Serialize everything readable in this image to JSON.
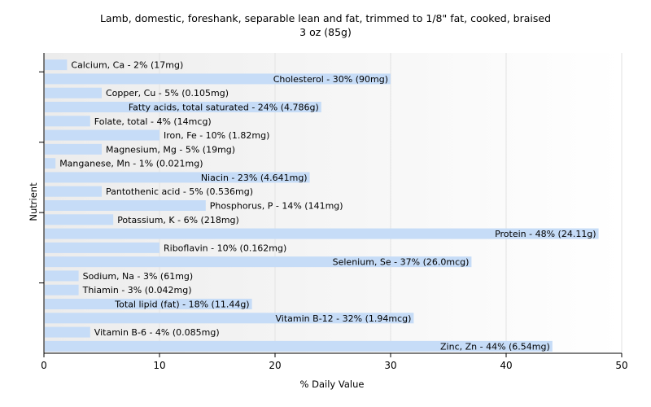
{
  "chart_data": {
    "type": "bar",
    "orientation": "horizontal",
    "title": "Lamb, domestic, foreshank, separable lean and fat, trimmed to 1/8\" fat, cooked, braised",
    "subtitle": "3 oz (85g)",
    "xlabel": "% Daily Value",
    "ylabel": "Nutrient",
    "xlim": [
      0,
      50
    ],
    "xticks": [
      0,
      10,
      20,
      30,
      40,
      50
    ],
    "grid": true,
    "bar_color": "#c6dcf7",
    "categories": [
      "Calcium, Ca",
      "Cholesterol",
      "Copper, Cu",
      "Fatty acids, total saturated",
      "Folate, total",
      "Iron, Fe",
      "Magnesium, Mg",
      "Manganese, Mn",
      "Niacin",
      "Pantothenic acid",
      "Phosphorus, P",
      "Potassium, K",
      "Protein",
      "Riboflavin",
      "Selenium, Se",
      "Sodium, Na",
      "Thiamin",
      "Total lipid (fat)",
      "Vitamin B-12",
      "Vitamin B-6",
      "Zinc, Zn"
    ],
    "values": [
      2,
      30,
      5,
      24,
      4,
      10,
      5,
      1,
      23,
      5,
      14,
      6,
      48,
      10,
      37,
      3,
      3,
      18,
      32,
      4,
      44
    ],
    "labels": [
      "Calcium, Ca - 2% (17mg)",
      "Cholesterol - 30% (90mg)",
      "Copper, Cu - 5% (0.105mg)",
      "Fatty acids, total saturated - 24% (4.786g)",
      "Folate, total - 4% (14mcg)",
      "Iron, Fe - 10% (1.82mg)",
      "Magnesium, Mg - 5% (19mg)",
      "Manganese, Mn - 1% (0.021mg)",
      "Niacin - 23% (4.641mg)",
      "Pantothenic acid - 5% (0.536mg)",
      "Phosphorus, P - 14% (141mg)",
      "Potassium, K - 6% (218mg)",
      "Protein - 48% (24.11g)",
      "Riboflavin - 10% (0.162mg)",
      "Selenium, Se - 37% (26.0mcg)",
      "Sodium, Na - 3% (61mg)",
      "Thiamin - 3% (0.042mg)",
      "Total lipid (fat) - 18% (11.44g)",
      "Vitamin B-12 - 32% (1.94mcg)",
      "Vitamin B-6 - 4% (0.085mg)",
      "Zinc, Zn - 44% (6.54mg)"
    ]
  }
}
